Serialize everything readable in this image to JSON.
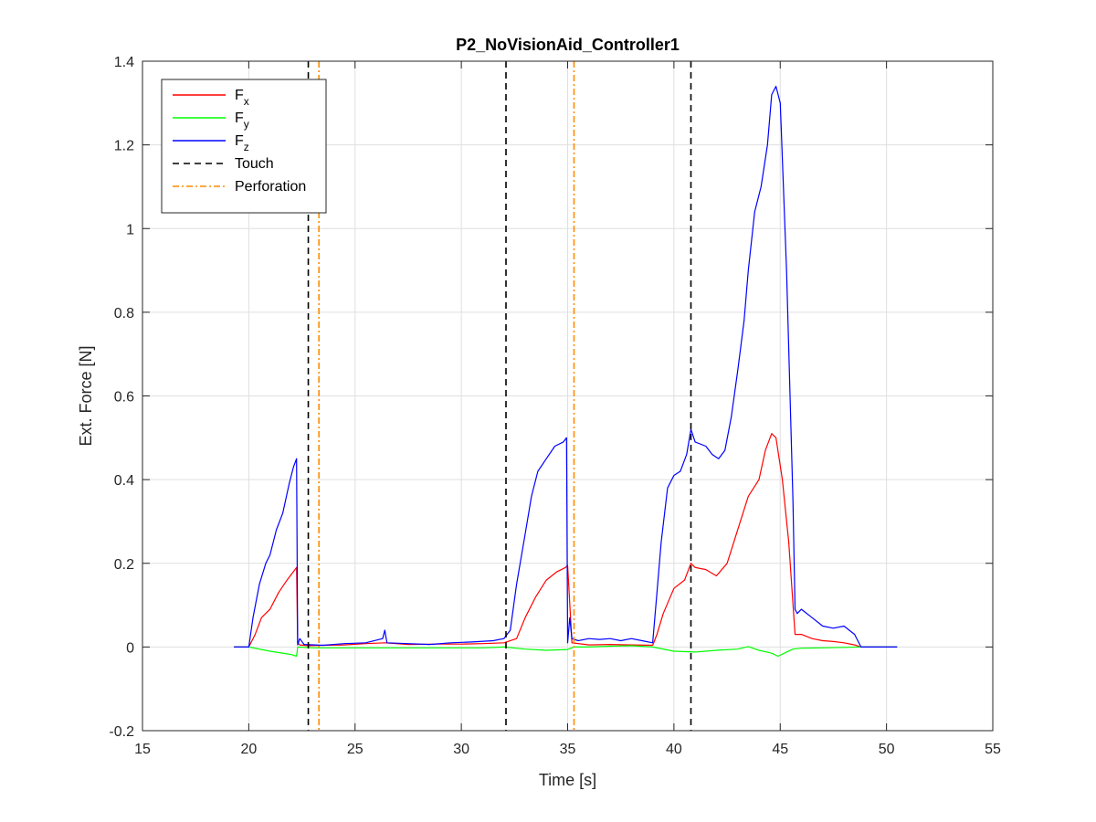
{
  "chart_data": {
    "type": "line",
    "title": "P2_NoVisionAid_Controller1",
    "xlabel": "Time [s]",
    "ylabel": "Ext. Force [N]",
    "xlim": [
      15,
      55
    ],
    "ylim": [
      -0.2,
      1.4
    ],
    "xticks": [
      15,
      20,
      25,
      30,
      35,
      40,
      45,
      50,
      55
    ],
    "yticks": [
      -0.2,
      0,
      0.2,
      0.4,
      0.6,
      0.8,
      1,
      1.2,
      1.4
    ],
    "xtick_labels": [
      "15",
      "20",
      "25",
      "30",
      "35",
      "40",
      "45",
      "50",
      "55"
    ],
    "ytick_labels": [
      "-0.2",
      "0",
      "0.2",
      "0.4",
      "0.6",
      "0.8",
      "1",
      "1.2",
      "1.4"
    ],
    "grid": true,
    "legend_position": "top-left",
    "series": [
      {
        "name": "F",
        "subscript": "x",
        "color": "#ff0000",
        "style": "solid",
        "x": [
          19.3,
          20.0,
          20.3,
          20.6,
          21.0,
          21.4,
          21.8,
          22.1,
          22.25,
          22.3,
          22.4,
          22.8,
          23.5,
          24.5,
          25.5,
          26.4,
          27.5,
          29.0,
          30.0,
          31.0,
          32.0,
          32.6,
          33.0,
          33.5,
          34.0,
          34.5,
          34.9,
          35.0,
          35.2,
          36.0,
          37.0,
          38.0,
          39.0,
          39.2,
          39.5,
          40.0,
          40.5,
          40.8,
          41.0,
          41.5,
          42.0,
          42.5,
          43.0,
          43.5,
          44.0,
          44.3,
          44.6,
          44.8,
          45.1,
          45.4,
          45.7,
          46.0,
          46.5,
          47.0,
          47.5,
          48.0,
          48.5,
          48.8,
          50.5
        ],
        "y": [
          0,
          0,
          0.03,
          0.07,
          0.09,
          0.13,
          0.16,
          0.18,
          0.19,
          0.01,
          0.005,
          0.003,
          0.004,
          0.005,
          0.008,
          0.01,
          0.006,
          0.007,
          0.007,
          0.008,
          0.01,
          0.02,
          0.07,
          0.12,
          0.16,
          0.18,
          0.19,
          0.195,
          0.01,
          0.005,
          0.006,
          0.005,
          0.004,
          0.03,
          0.08,
          0.14,
          0.16,
          0.2,
          0.19,
          0.185,
          0.17,
          0.2,
          0.28,
          0.36,
          0.4,
          0.47,
          0.51,
          0.5,
          0.4,
          0.25,
          0.03,
          0.03,
          0.02,
          0.015,
          0.013,
          0.01,
          0.005,
          0,
          0
        ]
      },
      {
        "name": "F",
        "subscript": "y",
        "color": "#00ff00",
        "style": "solid",
        "x": [
          19.3,
          20.0,
          21.0,
          22.0,
          22.25,
          22.3,
          23.0,
          25.0,
          28.0,
          31.0,
          32.0,
          33.0,
          34.0,
          35.0,
          35.3,
          36.0,
          37.0,
          38.0,
          39.0,
          40.0,
          41.0,
          42.0,
          43.0,
          43.5,
          44.0,
          44.6,
          44.9,
          45.3,
          45.6,
          46.0,
          47.0,
          48.0,
          48.8,
          50.5
        ],
        "y": [
          0,
          0,
          -0.01,
          -0.018,
          -0.022,
          0,
          -0.002,
          -0.002,
          -0.002,
          -0.002,
          0,
          -0.005,
          -0.008,
          -0.006,
          0,
          0,
          0.002,
          0.003,
          0,
          -0.01,
          -0.012,
          -0.008,
          -0.005,
          0.001,
          -0.008,
          -0.015,
          -0.022,
          -0.012,
          -0.005,
          -0.003,
          -0.002,
          -0.001,
          0,
          0
        ]
      },
      {
        "name": "F",
        "subscript": "z",
        "color": "#0000ff",
        "style": "solid",
        "x": [
          19.3,
          20.0,
          20.2,
          20.5,
          20.8,
          21.0,
          21.3,
          21.6,
          21.9,
          22.1,
          22.25,
          22.3,
          22.4,
          22.6,
          23.5,
          24.5,
          25.5,
          26.3,
          26.4,
          26.5,
          27.5,
          28.5,
          29.5,
          30.5,
          31.5,
          32.0,
          32.3,
          32.6,
          33.0,
          33.3,
          33.6,
          34.0,
          34.4,
          34.8,
          34.95,
          35.0,
          35.1,
          35.2,
          35.5,
          36.0,
          36.5,
          37.0,
          37.5,
          38.0,
          38.5,
          39.0,
          39.2,
          39.4,
          39.7,
          40.0,
          40.3,
          40.6,
          40.8,
          41.0,
          41.5,
          41.8,
          42.1,
          42.4,
          42.7,
          43.0,
          43.3,
          43.5,
          43.8,
          44.1,
          44.4,
          44.6,
          44.8,
          45.0,
          45.3,
          45.6,
          45.7,
          45.8,
          46.0,
          46.5,
          47.0,
          47.5,
          48.0,
          48.5,
          48.8,
          50.5
        ],
        "y": [
          0,
          0,
          0.07,
          0.15,
          0.2,
          0.22,
          0.28,
          0.32,
          0.39,
          0.43,
          0.45,
          0.005,
          0.02,
          0.006,
          0.004,
          0.008,
          0.01,
          0.02,
          0.04,
          0.01,
          0.008,
          0.006,
          0.01,
          0.012,
          0.015,
          0.02,
          0.04,
          0.15,
          0.27,
          0.36,
          0.42,
          0.45,
          0.48,
          0.49,
          0.5,
          0.01,
          0.07,
          0.02,
          0.015,
          0.02,
          0.018,
          0.02,
          0.015,
          0.02,
          0.015,
          0.01,
          0.13,
          0.25,
          0.38,
          0.41,
          0.42,
          0.46,
          0.52,
          0.49,
          0.48,
          0.46,
          0.45,
          0.47,
          0.55,
          0.66,
          0.78,
          0.9,
          1.04,
          1.1,
          1.2,
          1.32,
          1.34,
          1.3,
          0.9,
          0.35,
          0.09,
          0.08,
          0.09,
          0.07,
          0.05,
          0.045,
          0.05,
          0.03,
          0,
          0
        ]
      },
      {
        "name": "Touch",
        "color": "#000000",
        "style": "dashed",
        "vlines": [
          22.8,
          32.1,
          40.8
        ]
      },
      {
        "name": "Perforation",
        "color": "#ff8c00",
        "style": "dashdot",
        "vlines": [
          23.3,
          35.3
        ]
      }
    ]
  }
}
